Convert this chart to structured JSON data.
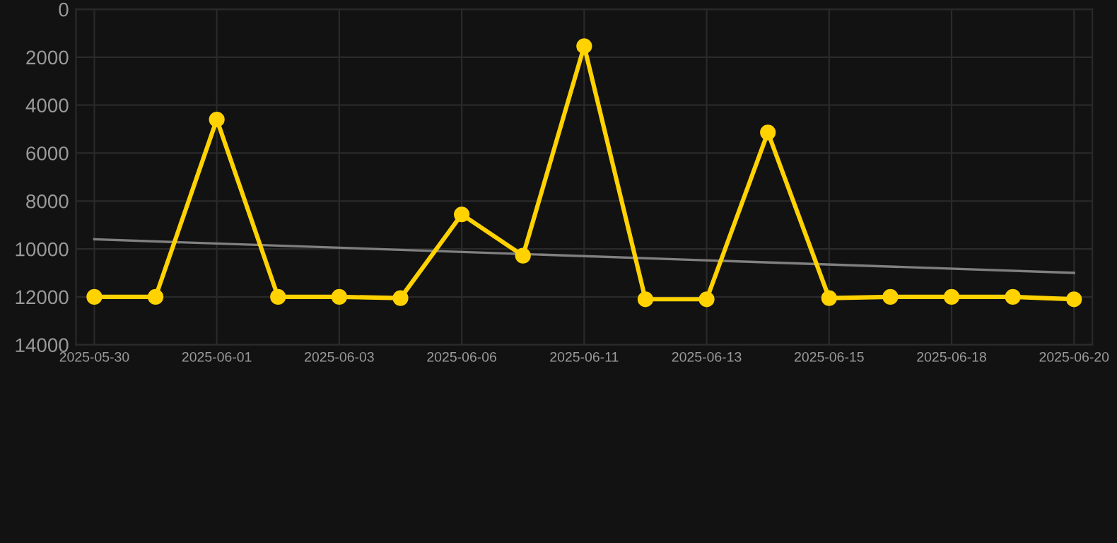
{
  "chart_data": {
    "type": "line",
    "categories": [
      "2025-05-30",
      null,
      "2025-06-01",
      null,
      "2025-06-03",
      null,
      "2025-06-06",
      null,
      "2025-06-11",
      null,
      "2025-06-13",
      null,
      "2025-06-15",
      null,
      "2025-06-18",
      null,
      "2025-06-20"
    ],
    "series": [
      {
        "color": "#ffd200",
        "marker": "circle",
        "values": [
          12000,
          12000,
          4600,
          12000,
          12000,
          12050,
          8560,
          10280,
          1540,
          12100,
          12100,
          5140,
          12050,
          12000,
          12000,
          12000,
          12100
        ]
      },
      {
        "type": "line",
        "color": "#808080",
        "marker": "none",
        "values": [
          9600,
          null,
          null,
          null,
          null,
          null,
          null,
          null,
          null,
          null,
          null,
          null,
          null,
          null,
          null,
          null,
          11000
        ]
      }
    ],
    "ylim": [
      14000,
      0
    ],
    "yticks": [
      0,
      2000,
      4000,
      6000,
      8000,
      10000,
      12000,
      14000
    ],
    "grid": true
  }
}
